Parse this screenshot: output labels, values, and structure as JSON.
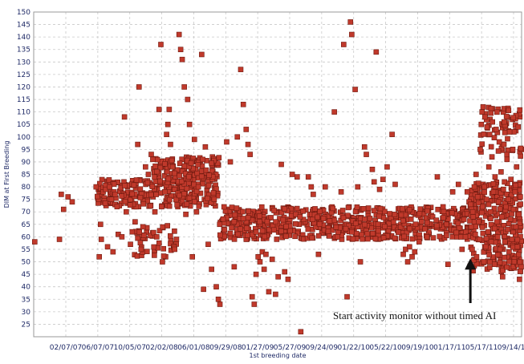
{
  "chart_data": {
    "type": "scatter",
    "xlabel": "1st breeding date",
    "ylabel": "DIM at First Breeding",
    "x_tick_labels": [
      "02/07/07",
      "06/07/07",
      "10/05/07",
      "02/02/08",
      "06/01/08",
      "09/29/08",
      "01/27/09",
      "05/27/09",
      "09/24/09",
      "01/22/10",
      "05/22/10",
      "09/19/10",
      "01/17/11",
      "05/17/11",
      "09/14/11"
    ],
    "x_range": [
      "2006-10-11",
      "2011-11-30"
    ],
    "ylim": [
      20,
      150
    ],
    "y_ticks": [
      25,
      30,
      35,
      40,
      45,
      50,
      55,
      60,
      65,
      70,
      75,
      80,
      85,
      90,
      95,
      100,
      105,
      110,
      115,
      120,
      125,
      130,
      135,
      140,
      145,
      150
    ],
    "grid": true,
    "marker_color": "#c0392b",
    "annotation": {
      "text": "Start activity monitor without timed AI",
      "arrow_to": {
        "x": "2011-05-17",
        "y": 52
      }
    },
    "points": [
      {
        "x": "2006-10-15",
        "y": 58
      },
      {
        "x": "2007-01-18",
        "y": 59
      },
      {
        "x": "2007-01-25",
        "y": 77
      },
      {
        "x": "2007-02-03",
        "y": 71
      },
      {
        "x": "2007-02-20",
        "y": 76
      },
      {
        "x": "2007-03-08",
        "y": 74
      },
      {
        "x": "2007-06-08",
        "y": 80
      },
      {
        "x": "2007-06-20",
        "y": 52
      },
      {
        "x": "2007-06-25",
        "y": 65
      },
      {
        "x": "2007-06-28",
        "y": 59
      },
      {
        "x": "2007-07-05",
        "y": 78
      },
      {
        "x": "2007-07-15",
        "y": 79
      },
      {
        "x": "2007-07-22",
        "y": 56
      },
      {
        "x": "2007-07-30",
        "y": 80
      },
      {
        "x": "2007-08-06",
        "y": 75
      },
      {
        "x": "2007-08-12",
        "y": 54
      },
      {
        "x": "2007-08-20",
        "y": 77
      },
      {
        "x": "2007-09-01",
        "y": 61
      },
      {
        "x": "2007-09-15",
        "y": 60
      },
      {
        "x": "2007-09-25",
        "y": 108
      },
      {
        "x": "2007-10-02",
        "y": 70
      },
      {
        "x": "2007-10-18",
        "y": 57
      },
      {
        "x": "2007-10-25",
        "y": 62
      },
      {
        "x": "2007-11-05",
        "y": 66
      },
      {
        "x": "2007-11-15",
        "y": 97
      },
      {
        "x": "2007-11-20",
        "y": 120
      },
      {
        "x": "2007-11-28",
        "y": 55
      },
      {
        "x": "2007-12-05",
        "y": 64
      },
      {
        "x": "2007-12-15",
        "y": 88
      },
      {
        "x": "2007-12-26",
        "y": 85
      },
      {
        "x": "2008-01-06",
        "y": 93
      },
      {
        "x": "2008-01-12",
        "y": 91
      },
      {
        "x": "2008-01-20",
        "y": 70
      },
      {
        "x": "2008-01-27",
        "y": 60
      },
      {
        "x": "2008-02-05",
        "y": 111
      },
      {
        "x": "2008-02-12",
        "y": 137
      },
      {
        "x": "2008-02-18",
        "y": 50
      },
      {
        "x": "2008-02-27",
        "y": 78
      },
      {
        "x": "2008-03-05",
        "y": 101
      },
      {
        "x": "2008-03-10",
        "y": 105
      },
      {
        "x": "2008-03-15",
        "y": 111
      },
      {
        "x": "2008-03-20",
        "y": 97
      },
      {
        "x": "2008-03-28",
        "y": 88
      },
      {
        "x": "2008-04-05",
        "y": 55
      },
      {
        "x": "2008-04-12",
        "y": 59
      },
      {
        "x": "2008-04-22",
        "y": 141
      },
      {
        "x": "2008-04-28",
        "y": 135
      },
      {
        "x": "2008-05-04",
        "y": 131
      },
      {
        "x": "2008-05-12",
        "y": 120
      },
      {
        "x": "2008-05-18",
        "y": 69
      },
      {
        "x": "2008-05-25",
        "y": 115
      },
      {
        "x": "2008-06-01",
        "y": 105
      },
      {
        "x": "2008-06-12",
        "y": 52
      },
      {
        "x": "2008-06-20",
        "y": 99
      },
      {
        "x": "2008-06-28",
        "y": 70
      },
      {
        "x": "2008-07-05",
        "y": 80
      },
      {
        "x": "2008-07-18",
        "y": 133
      },
      {
        "x": "2008-07-25",
        "y": 39
      },
      {
        "x": "2008-08-01",
        "y": 96
      },
      {
        "x": "2008-08-12",
        "y": 57
      },
      {
        "x": "2008-08-25",
        "y": 47
      },
      {
        "x": "2008-09-04",
        "y": 75
      },
      {
        "x": "2008-09-12",
        "y": 40
      },
      {
        "x": "2008-09-20",
        "y": 35
      },
      {
        "x": "2008-09-26",
        "y": 33
      },
      {
        "x": "2008-10-12",
        "y": 72
      },
      {
        "x": "2008-10-22",
        "y": 98
      },
      {
        "x": "2008-11-05",
        "y": 90
      },
      {
        "x": "2008-11-20",
        "y": 48
      },
      {
        "x": "2008-12-02",
        "y": 100
      },
      {
        "x": "2008-12-15",
        "y": 127
      },
      {
        "x": "2008-12-25",
        "y": 113
      },
      {
        "x": "2009-01-05",
        "y": 103
      },
      {
        "x": "2009-01-12",
        "y": 97
      },
      {
        "x": "2009-01-20",
        "y": 93
      },
      {
        "x": "2009-01-28",
        "y": 36
      },
      {
        "x": "2009-02-05",
        "y": 33
      },
      {
        "x": "2009-02-12",
        "y": 45
      },
      {
        "x": "2009-02-20",
        "y": 52
      },
      {
        "x": "2009-02-27",
        "y": 50
      },
      {
        "x": "2009-03-08",
        "y": 54
      },
      {
        "x": "2009-03-15",
        "y": 47
      },
      {
        "x": "2009-03-22",
        "y": 53
      },
      {
        "x": "2009-04-02",
        "y": 38
      },
      {
        "x": "2009-04-15",
        "y": 51
      },
      {
        "x": "2009-04-28",
        "y": 37
      },
      {
        "x": "2009-05-08",
        "y": 44
      },
      {
        "x": "2009-05-20",
        "y": 89
      },
      {
        "x": "2009-06-02",
        "y": 46
      },
      {
        "x": "2009-06-15",
        "y": 43
      },
      {
        "x": "2009-07-01",
        "y": 85
      },
      {
        "x": "2009-07-20",
        "y": 84
      },
      {
        "x": "2009-08-03",
        "y": 22
      },
      {
        "x": "2009-09-01",
        "y": 84
      },
      {
        "x": "2009-09-12",
        "y": 80
      },
      {
        "x": "2009-09-20",
        "y": 77
      },
      {
        "x": "2009-10-10",
        "y": 53
      },
      {
        "x": "2009-11-05",
        "y": 80
      },
      {
        "x": "2009-12-10",
        "y": 110
      },
      {
        "x": "2009-12-22",
        "y": 60
      },
      {
        "x": "2010-01-05",
        "y": 78
      },
      {
        "x": "2010-01-15",
        "y": 137
      },
      {
        "x": "2010-01-28",
        "y": 36
      },
      {
        "x": "2010-02-10",
        "y": 146
      },
      {
        "x": "2010-02-15",
        "y": 141
      },
      {
        "x": "2010-02-28",
        "y": 119
      },
      {
        "x": "2010-03-10",
        "y": 80
      },
      {
        "x": "2010-03-20",
        "y": 50
      },
      {
        "x": "2010-04-05",
        "y": 96
      },
      {
        "x": "2010-04-12",
        "y": 93
      },
      {
        "x": "2010-05-05",
        "y": 87
      },
      {
        "x": "2010-05-12",
        "y": 82
      },
      {
        "x": "2010-05-20",
        "y": 134
      },
      {
        "x": "2010-06-02",
        "y": 79
      },
      {
        "x": "2010-06-15",
        "y": 83
      },
      {
        "x": "2010-07-01",
        "y": 88
      },
      {
        "x": "2010-07-20",
        "y": 101
      },
      {
        "x": "2010-08-01",
        "y": 81
      },
      {
        "x": "2010-09-01",
        "y": 53
      },
      {
        "x": "2010-09-10",
        "y": 55
      },
      {
        "x": "2010-09-18",
        "y": 50
      },
      {
        "x": "2010-09-25",
        "y": 56
      },
      {
        "x": "2010-10-05",
        "y": 52
      },
      {
        "x": "2010-10-15",
        "y": 54
      },
      {
        "x": "2010-11-01",
        "y": 58
      },
      {
        "x": "2010-12-01",
        "y": 60
      },
      {
        "x": "2011-01-10",
        "y": 84
      },
      {
        "x": "2011-02-01",
        "y": 72
      },
      {
        "x": "2011-02-20",
        "y": 49
      },
      {
        "x": "2011-03-10",
        "y": 78
      },
      {
        "x": "2011-04-01",
        "y": 81
      },
      {
        "x": "2011-04-15",
        "y": 55
      },
      {
        "x": "2011-04-28",
        "y": 60
      },
      {
        "x": "2011-05-05",
        "y": 78
      },
      {
        "x": "2011-05-12",
        "y": 74
      },
      {
        "x": "2011-05-18",
        "y": 73
      },
      {
        "x": "2011-05-20",
        "y": 64
      },
      {
        "x": "2011-05-24",
        "y": 55
      },
      {
        "x": "2011-05-26",
        "y": 70
      },
      {
        "x": "2011-05-28",
        "y": 68
      },
      {
        "x": "2011-06-01",
        "y": 80
      },
      {
        "x": "2011-06-05",
        "y": 61
      },
      {
        "x": "2011-06-08",
        "y": 85
      },
      {
        "x": "2011-06-10",
        "y": 52
      },
      {
        "x": "2011-06-14",
        "y": 76
      },
      {
        "x": "2011-06-18",
        "y": 66
      },
      {
        "x": "2011-06-22",
        "y": 59
      },
      {
        "x": "2011-06-24",
        "y": 95
      },
      {
        "x": "2011-06-28",
        "y": 105
      },
      {
        "x": "2011-07-01",
        "y": 110
      },
      {
        "x": "2011-07-03",
        "y": 72
      },
      {
        "x": "2011-07-05",
        "y": 112
      },
      {
        "x": "2011-07-08",
        "y": 50
      },
      {
        "x": "2011-07-10",
        "y": 80
      },
      {
        "x": "2011-07-12",
        "y": 108
      },
      {
        "x": "2011-07-15",
        "y": 56
      },
      {
        "x": "2011-07-18",
        "y": 75
      },
      {
        "x": "2011-07-20",
        "y": 104
      },
      {
        "x": "2011-07-24",
        "y": 62
      },
      {
        "x": "2011-07-27",
        "y": 88
      },
      {
        "x": "2011-07-30",
        "y": 101
      },
      {
        "x": "2011-08-02",
        "y": 70
      },
      {
        "x": "2011-08-05",
        "y": 58
      },
      {
        "x": "2011-08-08",
        "y": 92
      },
      {
        "x": "2011-08-10",
        "y": 106
      },
      {
        "x": "2011-08-14",
        "y": 78
      },
      {
        "x": "2011-08-18",
        "y": 49
      },
      {
        "x": "2011-08-20",
        "y": 84
      },
      {
        "x": "2011-08-24",
        "y": 103
      },
      {
        "x": "2011-08-27",
        "y": 66
      },
      {
        "x": "2011-08-30",
        "y": 60
      },
      {
        "x": "2011-09-02",
        "y": 74
      },
      {
        "x": "2011-09-05",
        "y": 98
      },
      {
        "x": "2011-09-08",
        "y": 55
      },
      {
        "x": "2011-09-12",
        "y": 86
      },
      {
        "x": "2011-09-15",
        "y": 68
      },
      {
        "x": "2011-09-18",
        "y": 44
      },
      {
        "x": "2011-09-21",
        "y": 79
      },
      {
        "x": "2011-09-24",
        "y": 106
      },
      {
        "x": "2011-09-27",
        "y": 58
      },
      {
        "x": "2011-10-01",
        "y": 72
      },
      {
        "x": "2011-10-05",
        "y": 91
      },
      {
        "x": "2011-10-08",
        "y": 63
      },
      {
        "x": "2011-10-10",
        "y": 75
      },
      {
        "x": "2011-10-13",
        "y": 54
      },
      {
        "x": "2011-10-15",
        "y": 102
      },
      {
        "x": "2011-10-18",
        "y": 67
      },
      {
        "x": "2011-10-20",
        "y": 83
      },
      {
        "x": "2011-10-24",
        "y": 59
      },
      {
        "x": "2011-10-27",
        "y": 95
      },
      {
        "x": "2011-10-30",
        "y": 71
      },
      {
        "x": "2011-11-02",
        "y": 50
      },
      {
        "x": "2011-11-05",
        "y": 78
      },
      {
        "x": "2011-11-08",
        "y": 64
      },
      {
        "x": "2011-11-11",
        "y": 88
      },
      {
        "x": "2011-11-14",
        "y": 56
      },
      {
        "x": "2011-11-17",
        "y": 104
      },
      {
        "x": "2011-11-20",
        "y": 69
      },
      {
        "x": "2011-11-22",
        "y": 43
      },
      {
        "x": "2011-11-25",
        "y": 76
      }
    ],
    "dense_bands": [
      {
        "x_start": "2007-06-10",
        "x_end": "2008-09-20",
        "y_min": 72,
        "y_max": 83,
        "count": 260
      },
      {
        "x_start": "2008-01-15",
        "x_end": "2008-09-25",
        "y_min": 83,
        "y_max": 92,
        "count": 130
      },
      {
        "x_start": "2007-11-01",
        "x_end": "2008-04-15",
        "y_min": 52,
        "y_max": 65,
        "count": 45
      },
      {
        "x_start": "2008-09-25",
        "x_end": "2011-05-20",
        "y_min": 59,
        "y_max": 72,
        "count": 640
      },
      {
        "x_start": "2011-05-15",
        "x_end": "2011-11-30",
        "y_min": 46,
        "y_max": 82,
        "count": 280
      },
      {
        "x_start": "2011-06-25",
        "x_end": "2011-11-30",
        "y_min": 92,
        "y_max": 112,
        "count": 60
      }
    ]
  }
}
